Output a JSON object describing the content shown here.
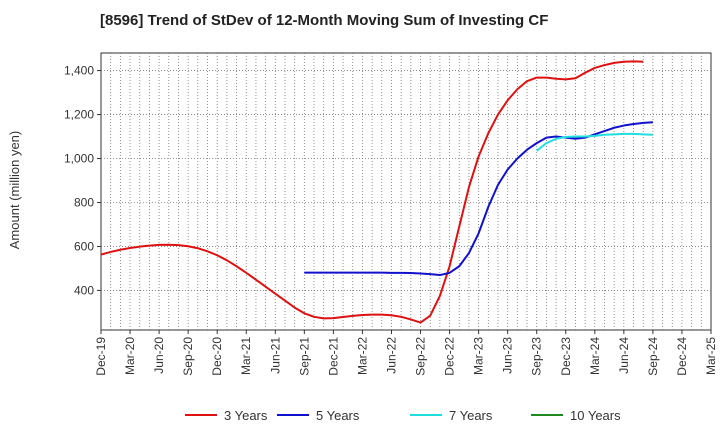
{
  "chart_data": {
    "type": "line",
    "title": "[8596]  Trend of StDev of 12-Month Moving Sum of Investing CF",
    "xlabel": "",
    "ylabel": "Amount (million yen)",
    "ylim": [
      220,
      1480
    ],
    "yticks": [
      400,
      600,
      800,
      1000,
      1200,
      1400
    ],
    "ytick_labels": [
      "400",
      "600",
      "800",
      "1,000",
      "1,200",
      "1,400"
    ],
    "xtick_labels": [
      "Dec-19",
      "Mar-20",
      "Jun-20",
      "Sep-20",
      "Dec-20",
      "Mar-21",
      "Jun-21",
      "Sep-21",
      "Dec-21",
      "Mar-22",
      "Jun-22",
      "Sep-22",
      "Dec-22",
      "Mar-23",
      "Jun-23",
      "Sep-23",
      "Dec-23",
      "Mar-24",
      "Jun-24",
      "Sep-24",
      "Dec-24",
      "Mar-25"
    ],
    "grid": true,
    "legend_position": "bottom",
    "series": [
      {
        "name": "3 Years",
        "color": "#dd1111",
        "start_index": 0,
        "values": [
          563,
          575,
          585,
          593,
          599,
          604,
          607,
          608,
          606,
          601,
          592,
          578,
          560,
          537,
          510,
          480,
          449,
          417,
          385,
          354,
          322,
          296,
          280,
          273,
          274,
          279,
          284,
          288,
          290,
          290,
          287,
          280,
          268,
          254,
          285,
          375,
          510,
          690,
          870,
          1010,
          1115,
          1200,
          1265,
          1315,
          1352,
          1368,
          1368,
          1363,
          1360,
          1365,
          1390,
          1412,
          1425,
          1435,
          1440,
          1442,
          1440
        ]
      },
      {
        "name": "5 Years",
        "color": "#1111cc",
        "start_index": 21,
        "values": [
          481,
          481,
          481,
          481,
          481,
          481,
          481,
          481,
          481,
          480,
          480,
          479,
          477,
          474,
          470,
          480,
          510,
          570,
          660,
          780,
          880,
          950,
          1000,
          1040,
          1070,
          1095,
          1100,
          1095,
          1090,
          1095,
          1110,
          1125,
          1140,
          1150,
          1157,
          1162,
          1165
        ]
      },
      {
        "name": "7 Years",
        "color": "#22dddd",
        "start_index": 45,
        "values": [
          1035,
          1070,
          1090,
          1098,
          1100,
          1100,
          1103,
          1108,
          1110,
          1112,
          1112,
          1110,
          1108
        ]
      },
      {
        "name": "10 Years",
        "color": "#228822",
        "start_index": 0,
        "values": []
      }
    ]
  }
}
